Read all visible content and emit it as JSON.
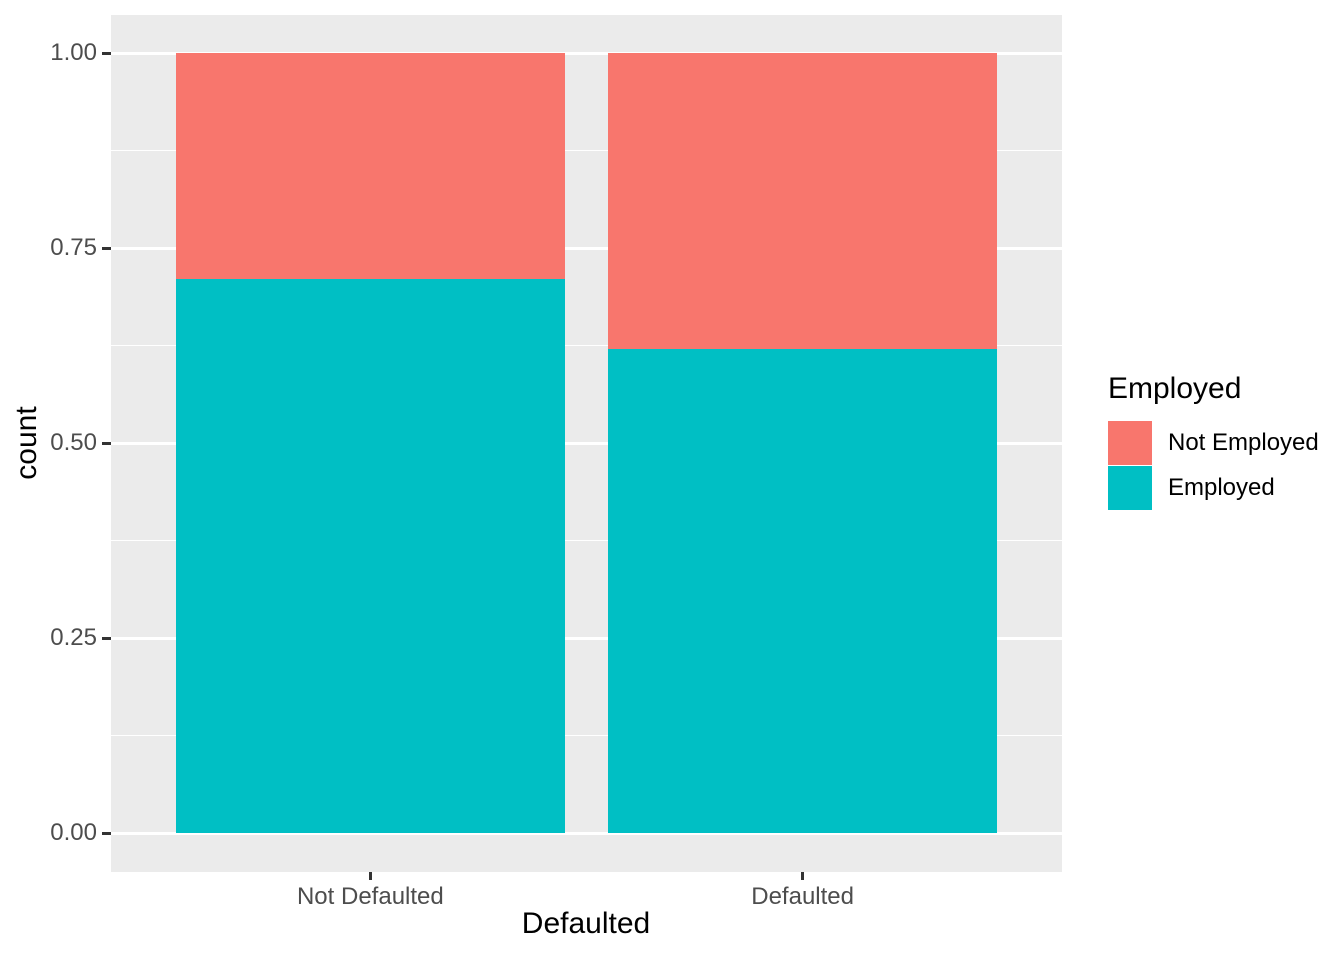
{
  "chart_data": {
    "type": "bar",
    "variant": "stacked-fill",
    "title": "",
    "xlabel": "Defaulted",
    "ylabel": "count",
    "categories": [
      "Not Defaulted",
      "Defaulted"
    ],
    "series": [
      {
        "name": "Employed",
        "color": "#00BFC4",
        "values": [
          0.71,
          0.62
        ]
      },
      {
        "name": "Not Employed",
        "color": "#F8766D",
        "values": [
          0.29,
          0.38
        ]
      }
    ],
    "y_ticks": [
      "0.00",
      "0.25",
      "0.50",
      "0.75",
      "1.00"
    ],
    "ylim": [
      0,
      1
    ],
    "grid": "white-on-gray, major and minor horizontal lines",
    "legend": {
      "title": "Employed",
      "position": "right",
      "entries": [
        {
          "label": "Not Employed",
          "color": "#F8766D"
        },
        {
          "label": "Employed",
          "color": "#00BFC4"
        }
      ]
    },
    "colors": {
      "panel_background": "#EBEBEB",
      "gridline": "#FFFFFF",
      "tick_mark": "#333333",
      "tick_label": "#4D4D4D",
      "axis_title": "#000000"
    }
  }
}
